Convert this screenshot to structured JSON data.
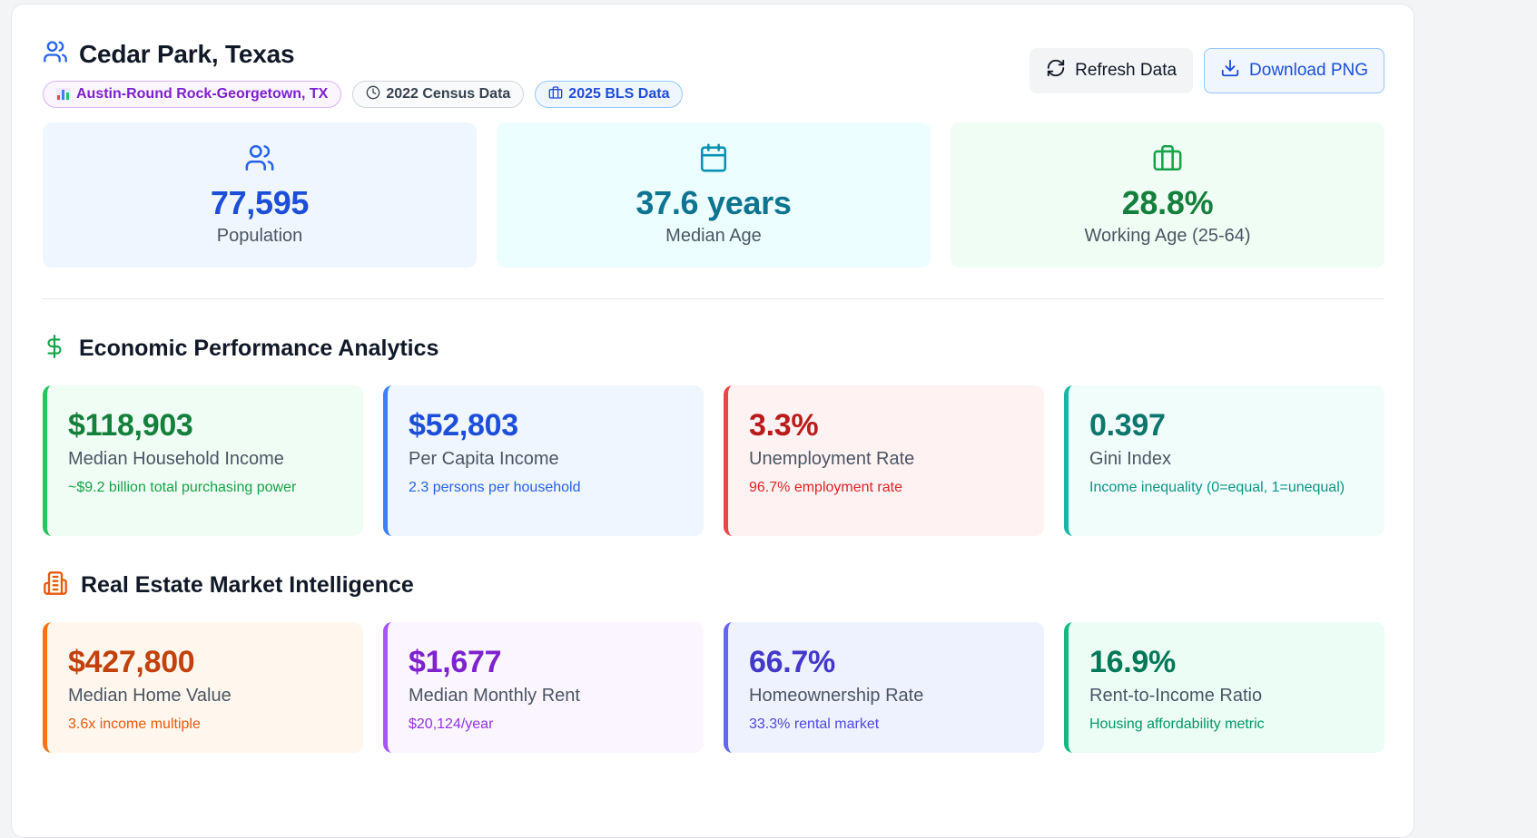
{
  "header": {
    "title": "Cedar Park, Texas",
    "badges": {
      "metro": "Austin-Round Rock-Georgetown, TX",
      "census": "2022 Census Data",
      "bls": "2025 BLS Data"
    },
    "buttons": {
      "refresh": "Refresh Data",
      "download": "Download PNG"
    }
  },
  "overview": {
    "population": {
      "value": "77,595",
      "label": "Population"
    },
    "median_age": {
      "value": "37.6 years",
      "label": "Median Age"
    },
    "working_age": {
      "value": "28.8%",
      "label": "Working Age (25-64)"
    }
  },
  "economic": {
    "title": "Economic Performance Analytics",
    "cards": [
      {
        "value": "$118,903",
        "label": "Median Household Income",
        "sub": "~$9.2 billion total purchasing power"
      },
      {
        "value": "$52,803",
        "label": "Per Capita Income",
        "sub": "2.3 persons per household"
      },
      {
        "value": "3.3%",
        "label": "Unemployment Rate",
        "sub": "96.7% employment rate"
      },
      {
        "value": "0.397",
        "label": "Gini Index",
        "sub": "Income inequality (0=equal, 1=unequal)"
      }
    ]
  },
  "real_estate": {
    "title": "Real Estate Market Intelligence",
    "cards": [
      {
        "value": "$427,800",
        "label": "Median Home Value",
        "sub": "3.6x income multiple"
      },
      {
        "value": "$1,677",
        "label": "Median Monthly Rent",
        "sub": "$20,124/year"
      },
      {
        "value": "66.7%",
        "label": "Homeownership Rate",
        "sub": "33.3% rental market"
      },
      {
        "value": "16.9%",
        "label": "Rent-to-Income Ratio",
        "sub": "Housing affordability metric"
      }
    ]
  },
  "colors": {
    "accent_blue": "#1d4ed8",
    "accent_green": "#15803d",
    "accent_red": "#b91c1c",
    "accent_orange": "#c2410c",
    "accent_purple": "#7e22ce"
  }
}
